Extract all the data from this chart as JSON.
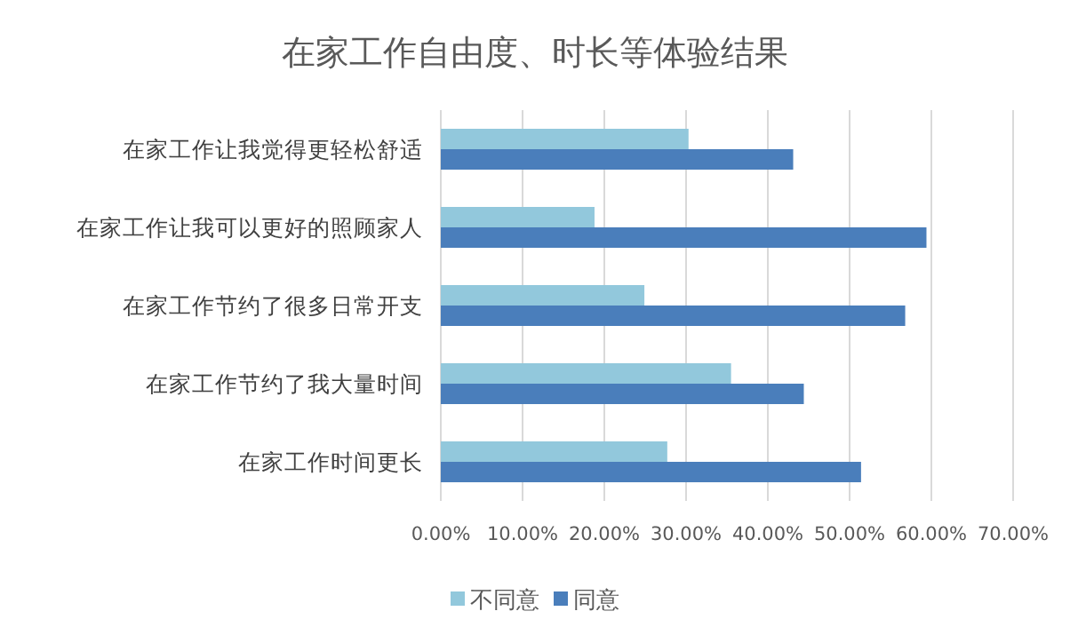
{
  "chart_data": {
    "type": "bar",
    "orientation": "horizontal",
    "title": "在家工作自由度、时长等体验结果",
    "categories": [
      "在家工作让我觉得更轻松舒适",
      "在家工作让我可以更好的照顾家人",
      "在家工作节约了很多日常开支",
      "在家工作节约了我大量时间",
      "在家工作时间更长"
    ],
    "series": [
      {
        "name": "不同意",
        "color": "#92c8dc",
        "values": [
          30.3,
          18.8,
          24.9,
          35.5,
          27.7
        ]
      },
      {
        "name": "同意",
        "color": "#4a7ebb",
        "values": [
          43.1,
          59.4,
          56.8,
          44.4,
          51.4
        ]
      }
    ],
    "xlim": [
      0,
      70
    ],
    "xticks": [
      {
        "value": 0,
        "label": "0.00%"
      },
      {
        "value": 10,
        "label": "10.00%"
      },
      {
        "value": 20,
        "label": "20.00%"
      },
      {
        "value": 30,
        "label": "30.00%"
      },
      {
        "value": 40,
        "label": "40.00%"
      },
      {
        "value": 50,
        "label": "50.00%"
      },
      {
        "value": 60,
        "label": "60.00%"
      },
      {
        "value": 70,
        "label": "70.00%"
      }
    ],
    "grid": "x",
    "legend": "bottom"
  }
}
